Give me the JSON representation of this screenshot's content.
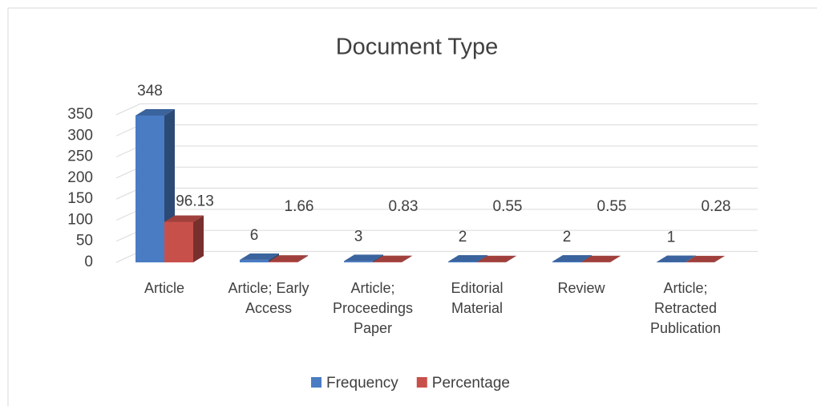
{
  "chart_data": {
    "type": "bar3d",
    "title": "Document Type",
    "categories": [
      "Article",
      "Article; Early Access",
      "Article; Proceedings Paper",
      "Editorial Material",
      "Review",
      "Article; Retracted Publication"
    ],
    "series": [
      {
        "name": "Frequency",
        "color": "#4a7cc4",
        "values": [
          348,
          6,
          3,
          2,
          2,
          1
        ]
      },
      {
        "name": "Percentage",
        "color": "#c8504b",
        "values": [
          96.13,
          1.66,
          0.83,
          0.55,
          0.55,
          0.28
        ]
      }
    ],
    "ylim": [
      0,
      350
    ],
    "yticks": [
      0,
      50,
      100,
      150,
      200,
      250,
      300,
      350
    ],
    "grid": true,
    "legend": "bottom"
  }
}
